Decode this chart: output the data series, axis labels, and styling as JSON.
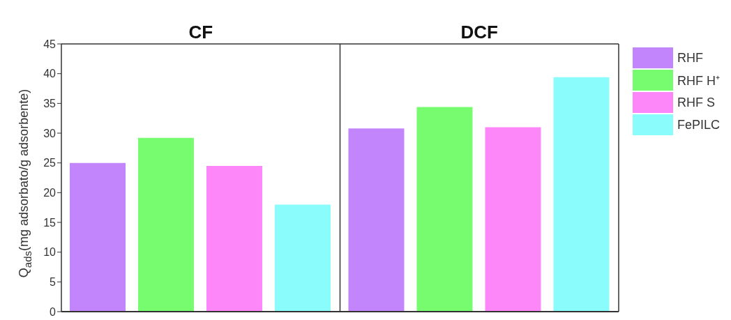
{
  "chart_data": {
    "type": "bar",
    "categories": [
      "CF",
      "DCF"
    ],
    "ylabel": "Q$_{ads}$(mg adsorbato/g adsorbente)",
    "ylim": [
      0,
      45
    ],
    "yticks": [
      0,
      5,
      10,
      15,
      20,
      25,
      30,
      35,
      40,
      45
    ],
    "grid": "x",
    "legend": "top right",
    "series": [
      {
        "name": "RHF",
        "color": "#c285fb",
        "values": [
          25,
          30.8
        ]
      },
      {
        "name": "RHF H⁺",
        "color": "#76fc6e",
        "values": [
          29.2,
          34.4
        ]
      },
      {
        "name": "RHF S",
        "color": "#fd87f8",
        "values": [
          24.5,
          31
        ]
      },
      {
        "name": "FePILC",
        "color": "#8afcfc",
        "values": [
          18,
          39.4
        ]
      }
    ]
  }
}
